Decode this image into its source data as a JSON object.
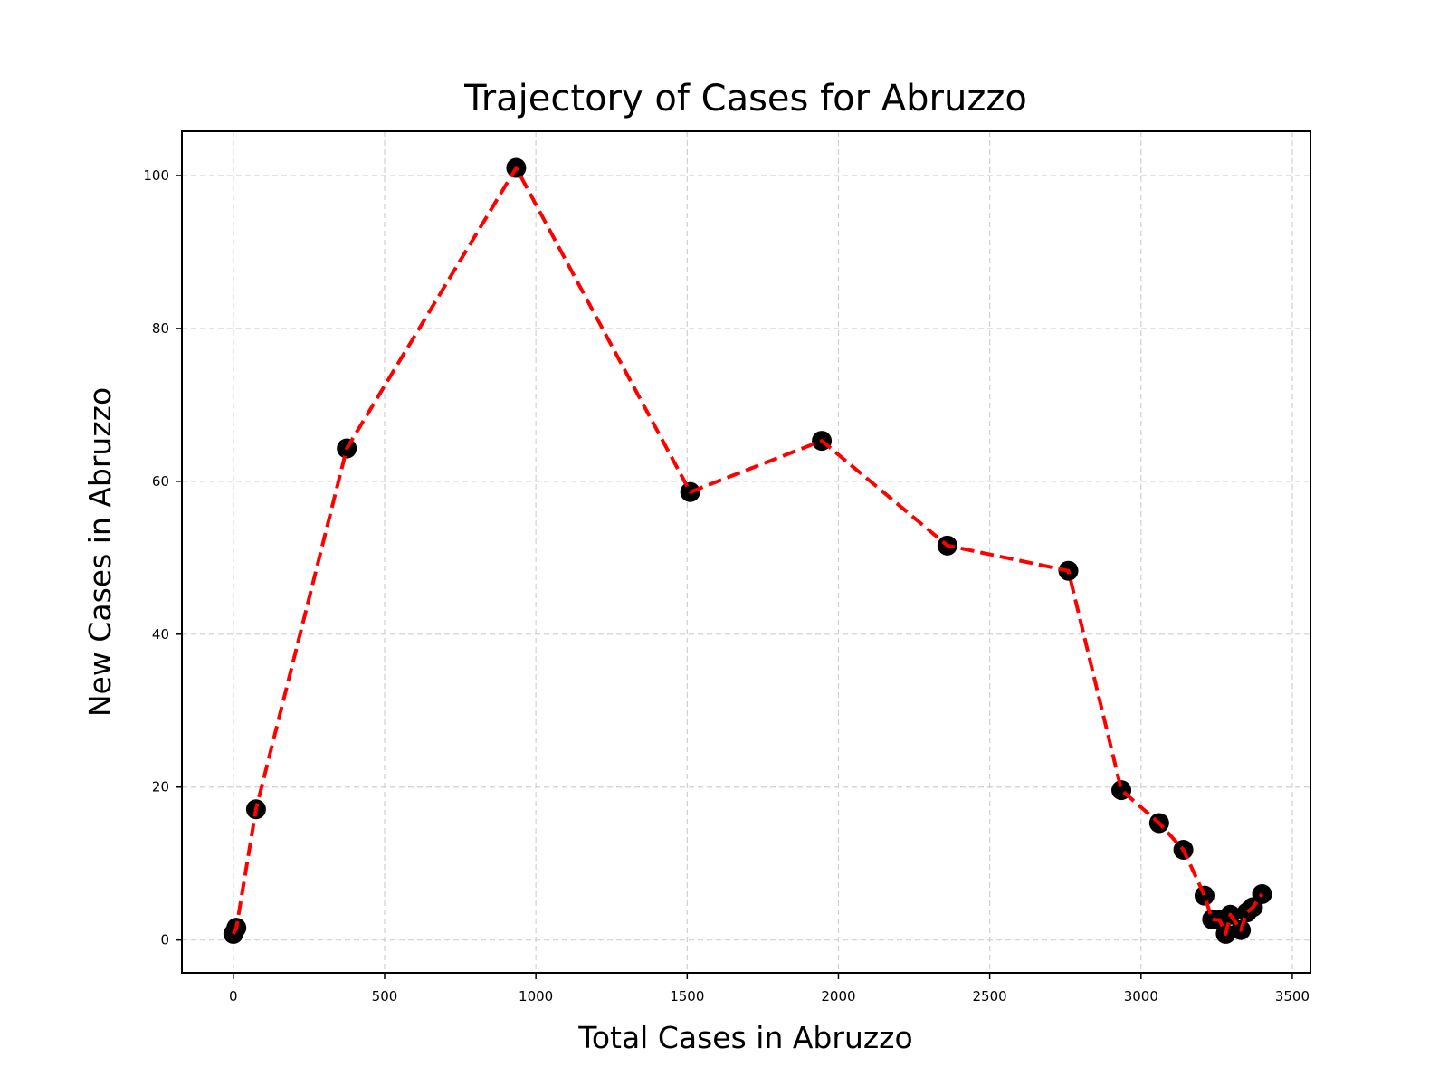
{
  "chart_data": {
    "type": "line",
    "title": "Trajectory of Cases for Abruzzo",
    "xlabel": "Total Cases in Abruzzo",
    "ylabel": "New Cases in Abruzzo",
    "xlim": [
      -170,
      3560
    ],
    "ylim": [
      -4.3,
      105.8
    ],
    "xticks": [
      0,
      500,
      1000,
      1500,
      2000,
      2500,
      3000,
      3500
    ],
    "yticks": [
      0,
      20,
      40,
      60,
      80,
      100
    ],
    "grid": true,
    "line_color": "#ff0000",
    "line_style": "dashed",
    "marker_color": "#000000",
    "series": [
      {
        "x": [
          0,
          10,
          75,
          375,
          935,
          1510,
          1945,
          2360,
          2760,
          2935,
          3060,
          3140,
          3210,
          3235,
          3260,
          3280,
          3295,
          3330,
          3350,
          3370,
          3400
        ],
        "y": [
          0.8,
          1.6,
          17.1,
          64.3,
          101.0,
          58.6,
          65.3,
          51.6,
          48.3,
          19.6,
          15.3,
          11.8,
          5.8,
          2.7,
          2.6,
          0.8,
          3.3,
          1.3,
          3.6,
          4.3,
          6.0
        ]
      }
    ]
  }
}
